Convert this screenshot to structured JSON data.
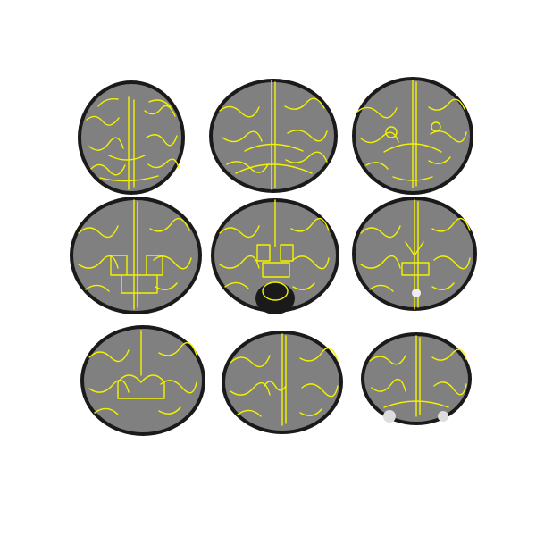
{
  "figure": {
    "background": "#ffffff",
    "contour_color": "#f2f200",
    "tissue_color": "#808080",
    "rim_color": "#1a1a1a",
    "panels": [
      {
        "view": "coronal",
        "row": 1,
        "col": 1
      },
      {
        "view": "coronal",
        "row": 1,
        "col": 2
      },
      {
        "view": "coronal",
        "row": 1,
        "col": 3
      },
      {
        "view": "coronal",
        "row": 2,
        "col": 1
      },
      {
        "view": "coronal",
        "row": 2,
        "col": 2
      },
      {
        "view": "coronal",
        "row": 2,
        "col": 3
      },
      {
        "view": "coronal",
        "row": 3,
        "col": 1
      },
      {
        "view": "coronal",
        "row": 3,
        "col": 2
      },
      {
        "view": "coronal",
        "row": 3,
        "col": 3
      }
    ]
  }
}
